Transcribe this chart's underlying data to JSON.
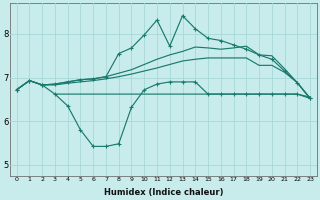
{
  "xlabel": "Humidex (Indice chaleur)",
  "bg_color": "#c8ecec",
  "grid_color": "#a8d8d8",
  "line_color": "#1a7a6e",
  "xlim": [
    -0.5,
    23.5
  ],
  "ylim": [
    4.75,
    8.7
  ],
  "yticks": [
    5,
    6,
    7,
    8
  ],
  "xticks": [
    0,
    1,
    2,
    3,
    4,
    5,
    6,
    7,
    8,
    9,
    10,
    11,
    12,
    13,
    14,
    15,
    16,
    17,
    18,
    19,
    20,
    21,
    22,
    23
  ],
  "line_flat_x": [
    3,
    4,
    5,
    6,
    7,
    8,
    9,
    10,
    11,
    12,
    13,
    14,
    15,
    16,
    17,
    18,
    19,
    20,
    21,
    22,
    23
  ],
  "line_flat_y": [
    6.62,
    6.62,
    6.62,
    6.62,
    6.62,
    6.62,
    6.62,
    6.62,
    6.62,
    6.62,
    6.62,
    6.62,
    6.62,
    6.62,
    6.62,
    6.62,
    6.62,
    6.62,
    6.62,
    6.62,
    6.55
  ],
  "line_mid_x": [
    0,
    1,
    2,
    3,
    4,
    5,
    6,
    7,
    8,
    9,
    10,
    11,
    12,
    13,
    14,
    15,
    16,
    17,
    18,
    19,
    20,
    21,
    22,
    23
  ],
  "line_mid_y": [
    6.72,
    6.93,
    6.83,
    6.83,
    6.87,
    6.9,
    6.93,
    6.97,
    7.02,
    7.08,
    7.15,
    7.22,
    7.3,
    7.38,
    7.42,
    7.45,
    7.45,
    7.45,
    7.45,
    7.28,
    7.28,
    7.12,
    6.88,
    6.52
  ],
  "line_upper_x": [
    0,
    1,
    2,
    3,
    4,
    5,
    6,
    7,
    8,
    9,
    10,
    11,
    12,
    13,
    14,
    15,
    16,
    17,
    18,
    19,
    20,
    21,
    22,
    23
  ],
  "line_upper_y": [
    6.72,
    6.93,
    6.83,
    6.85,
    6.9,
    6.95,
    6.97,
    7.02,
    7.1,
    7.18,
    7.3,
    7.42,
    7.52,
    7.6,
    7.7,
    7.68,
    7.65,
    7.68,
    7.72,
    7.52,
    7.5,
    7.2,
    6.88,
    6.52
  ],
  "line_dip_x": [
    0,
    1,
    2,
    3,
    4,
    5,
    6,
    7,
    8,
    9,
    10,
    11,
    12,
    13,
    14,
    15,
    16,
    17,
    18,
    19,
    20,
    21,
    22,
    23
  ],
  "line_dip_y": [
    6.72,
    6.93,
    6.83,
    6.62,
    6.35,
    5.8,
    5.42,
    5.42,
    5.48,
    6.32,
    6.72,
    6.85,
    6.9,
    6.9,
    6.9,
    6.62,
    6.62,
    6.62,
    6.62,
    6.62,
    6.62,
    6.62,
    6.62,
    6.52
  ],
  "line_spike_x": [
    0,
    1,
    2,
    3,
    4,
    5,
    6,
    7,
    8,
    9,
    10,
    11,
    12,
    13,
    14,
    15,
    16,
    17,
    18,
    19,
    20,
    21,
    22,
    23
  ],
  "line_spike_y": [
    6.72,
    6.93,
    6.83,
    6.85,
    6.9,
    6.95,
    6.97,
    7.02,
    7.55,
    7.68,
    7.98,
    8.32,
    7.72,
    8.42,
    8.12,
    7.9,
    7.85,
    7.75,
    7.65,
    7.52,
    7.42,
    7.15,
    6.88,
    6.52
  ]
}
